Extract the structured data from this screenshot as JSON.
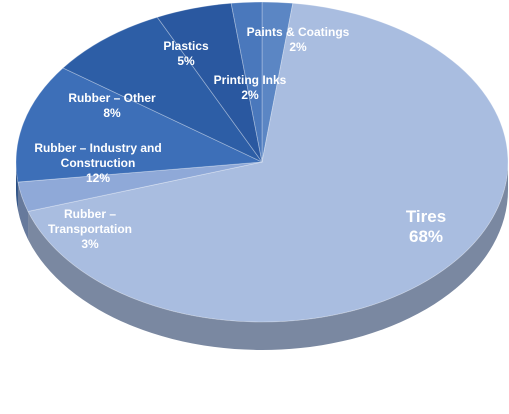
{
  "chart_data": {
    "type": "pie",
    "title": "",
    "slices": [
      {
        "name": "Paints & Coatings",
        "value": 2,
        "label": "2%",
        "color": "#5b86c4"
      },
      {
        "name": "Tires",
        "value": 68,
        "label": "68%",
        "color": "#a9bde0"
      },
      {
        "name": "Rubber – Transportation",
        "value": 3,
        "label": "3%",
        "color": "#8fa9d8"
      },
      {
        "name": "Rubber – Industry and Construction",
        "value": 12,
        "label": "12%",
        "color": "#3d6fb8"
      },
      {
        "name": "Rubber – Other",
        "value": 8,
        "label": "8%",
        "color": "#2d5ea6"
      },
      {
        "name": "Plastics",
        "value": 5,
        "label": "5%",
        "color": "#2a58a0"
      },
      {
        "name": "Printing Inks",
        "value": 2,
        "label": "2%",
        "color": "#4a78bc"
      }
    ]
  }
}
